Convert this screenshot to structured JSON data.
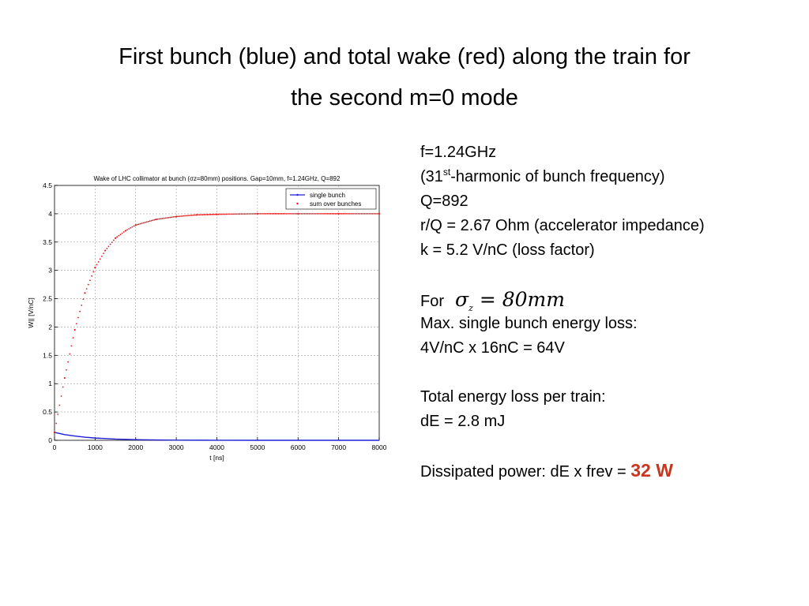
{
  "slide": {
    "title_line1": "First bunch (blue) and total wake (red) along the train for",
    "title_line2": "the second m=0 mode"
  },
  "notes": {
    "freq": "f=1.24GHz",
    "harmonic_pre": "(31",
    "harmonic_sup": "st",
    "harmonic_post": "-harmonic of bunch frequency)",
    "q": "Q=892",
    "rq": "r/Q = 2.67 Ohm (accelerator impedance)",
    "k": "k = 5.2 V/nC (loss factor)",
    "for_label": "For",
    "sigma_symbol": "σ",
    "sigma_sub": "z",
    "sigma_rest": " = 80mm",
    "max_loss_label": "Max. single bunch energy loss:",
    "max_loss_value": "4V/nC x 16nC = 64V",
    "total_loss_label": "Total energy loss per train:",
    "total_loss_value": "dE = 2.8 mJ",
    "power_label": "Dissipated power: dE x frev = ",
    "power_value": "32 W",
    "power_color": "#c8361e"
  },
  "chart_data": {
    "type": "line",
    "title": "Wake of LHC collimator at bunch (σz=80mm) positions. Gap=10mm, f=1.24GHz, Q=892",
    "xlabel": "t [ns]",
    "ylabel": "W|| [V/nC]",
    "xlim": [
      0,
      8000
    ],
    "ylim": [
      0,
      4.5
    ],
    "xticks": [
      0,
      1000,
      2000,
      3000,
      4000,
      5000,
      6000,
      7000,
      8000
    ],
    "yticks": [
      0,
      0.5,
      1,
      1.5,
      2,
      2.5,
      3,
      3.5,
      4,
      4.5
    ],
    "grid": true,
    "legend_position": "top-right",
    "series": [
      {
        "name": "single bunch",
        "color": "#1f1fd6",
        "marker": "line",
        "x": [
          0,
          250,
          500,
          750,
          1000,
          1500,
          2000,
          2500,
          3000,
          4000,
          5000,
          6000,
          7000,
          8000
        ],
        "y": [
          0.14,
          0.1,
          0.075,
          0.055,
          0.04,
          0.022,
          0.012,
          0.006,
          0.003,
          0.001,
          0.0,
          0.0,
          0.0,
          0.0
        ]
      },
      {
        "name": "sum over bunches",
        "color": "#e01818",
        "marker": "dots",
        "x": [
          0,
          250,
          500,
          750,
          1000,
          1250,
          1500,
          1750,
          2000,
          2500,
          3000,
          3500,
          4000,
          5000,
          6000,
          7000,
          8000
        ],
        "y": [
          0.14,
          1.1,
          1.95,
          2.6,
          3.05,
          3.35,
          3.57,
          3.7,
          3.8,
          3.9,
          3.95,
          3.98,
          3.99,
          4.0,
          4.0,
          4.0,
          4.0
        ]
      }
    ]
  }
}
